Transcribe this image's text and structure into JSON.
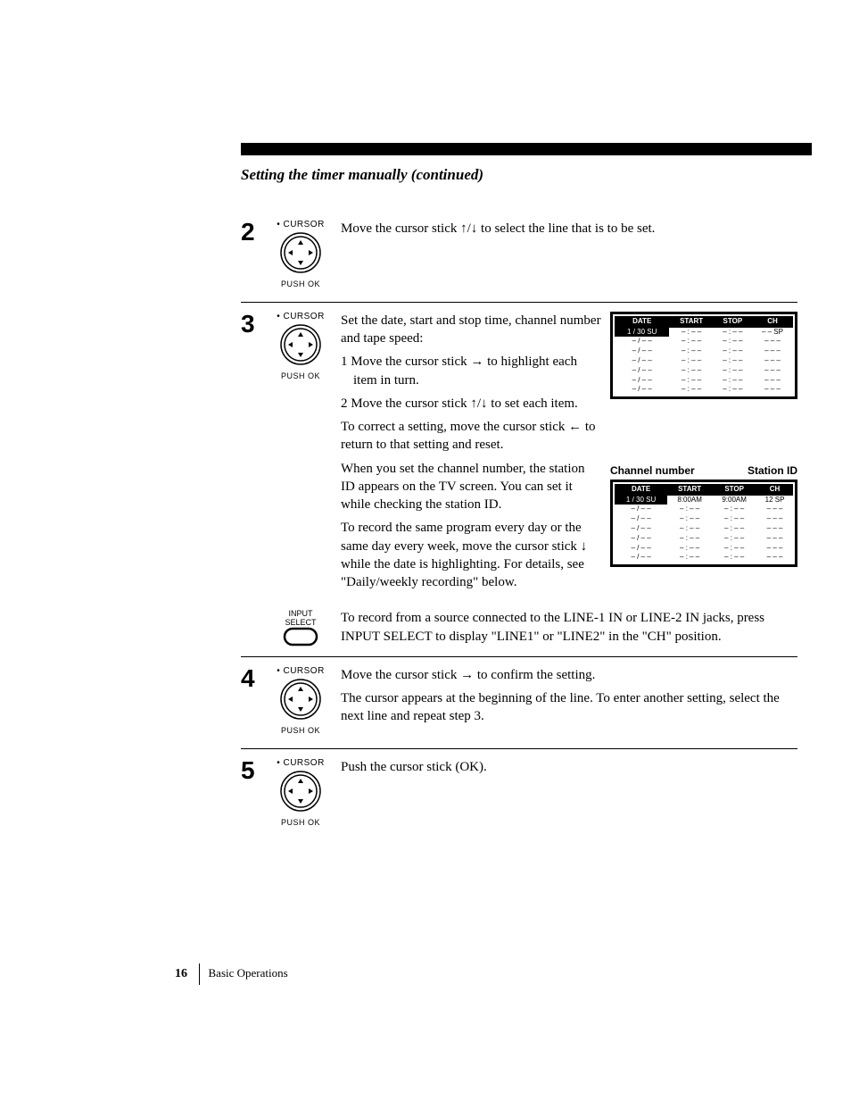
{
  "title": "Setting the timer manually (continued)",
  "control": {
    "cursor_label": "• CURSOR",
    "push_ok": "PUSH OK",
    "input_select_top": "INPUT",
    "input_select_bottom": "SELECT"
  },
  "steps": {
    "s2": {
      "num": "2",
      "text": "Move the cursor stick ↑/↓ to select the line that is to be set."
    },
    "s3": {
      "num": "3",
      "intro": "Set the date, start and stop time, channel number and tape speed:",
      "sub1": "1 Move the cursor stick → to highlight each item in turn.",
      "sub2": "2 Move the cursor stick ↑/↓ to set each item.",
      "correct": "To correct a setting, move the cursor stick ← to return to that setting and reset.",
      "station": "When you set the channel number, the station ID appears on the TV screen. You can set it while checking the station ID.",
      "daily": "To record the same program every day or the same day every week, move the cursor stick ↓ while the date is highlighting. For details, see \"Daily/weekly recording\" below.",
      "line_in": "To record from a source connected to the LINE-1 IN or LINE-2 IN jacks, press INPUT SELECT to display \"LINE1\" or \"LINE2\" in the \"CH\" position.",
      "callout_channel": "Channel number",
      "callout_station": "Station ID"
    },
    "s4": {
      "num": "4",
      "text1": "Move the cursor stick → to confirm the setting.",
      "text2": "The cursor appears at the beginning of the line. To enter another setting, select the next line and repeat step 3."
    },
    "s5": {
      "num": "5",
      "text": "Push the cursor stick (OK)."
    }
  },
  "screen1": {
    "headers": [
      "DATE",
      "START",
      "STOP",
      "CH"
    ],
    "hl_row": [
      "1 / 30 SU",
      "– : – –",
      "– : – –",
      "– –  SP"
    ],
    "rows": [
      [
        "– / – –",
        "– : – –",
        "– : – –",
        "– –  –"
      ],
      [
        "– / – –",
        "– : – –",
        "– : – –",
        "– –  –"
      ],
      [
        "– / – –",
        "– : – –",
        "– : – –",
        "– –  –"
      ],
      [
        "– / – –",
        "– : – –",
        "– : – –",
        "– –  –"
      ],
      [
        "– / – –",
        "– : – –",
        "– : – –",
        "– –  –"
      ],
      [
        "– / – –",
        "– : – –",
        "– : – –",
        "– –  –"
      ]
    ]
  },
  "screen2": {
    "headers": [
      "DATE",
      "START",
      "STOP",
      "CH"
    ],
    "hl_row": [
      "1 / 30 SU",
      "8:00AM",
      "9:00AM",
      "12  SP"
    ],
    "rows": [
      [
        "– / – –",
        "– : – –",
        "– : – –",
        "– –  –"
      ],
      [
        "– / – –",
        "– : – –",
        "– : – –",
        "– –  –"
      ],
      [
        "– / – –",
        "– : – –",
        "– : – –",
        "– –  –"
      ],
      [
        "– / – –",
        "– : – –",
        "– : – –",
        "– –  –"
      ],
      [
        "– / – –",
        "– : – –",
        "– : – –",
        "– –  –"
      ],
      [
        "– / – –",
        "– : – –",
        "– : – –",
        "– –  –"
      ]
    ]
  },
  "footer": {
    "page_num": "16",
    "section": "Basic Operations"
  }
}
